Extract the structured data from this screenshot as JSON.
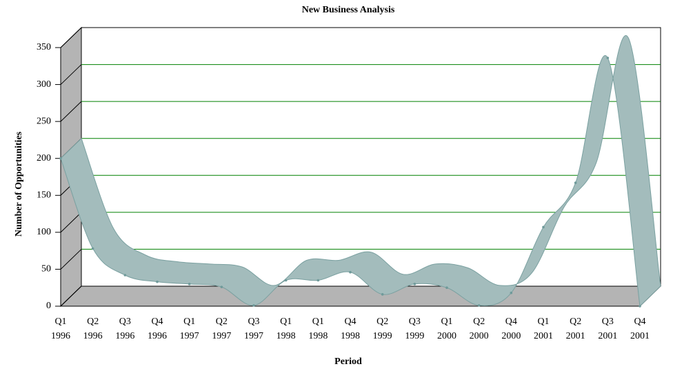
{
  "chart_data": {
    "type": "ribbon3d",
    "title": "New Business Analysis",
    "x_label": "Period",
    "y_label": "Number of Opportunities",
    "categories": [
      "Q1 1996",
      "Q2 1996",
      "Q3 1996",
      "Q4 1996",
      "Q1 1997",
      "Q2 1997",
      "Q3 1997",
      "Q1 1998",
      "Q1 1998",
      "Q4 1998",
      "Q2 1999",
      "Q3 1999",
      "Q1 2000",
      "Q2 2000",
      "Q4 2000",
      "Q1 2001",
      "Q2 2001",
      "Q3 2001",
      "Q4 2001"
    ],
    "values": [
      200,
      78,
      42,
      33,
      30,
      26,
      1,
      35,
      35,
      46,
      16,
      30,
      25,
      1,
      18,
      107,
      167,
      336,
      0
    ],
    "color": "#a3bcbc",
    "point_color": "#6f9a9a",
    "grid_color": "#008000",
    "wall_color": "#b4b4b4",
    "ylim": [
      0,
      350
    ],
    "yticks": [
      0,
      50,
      100,
      150,
      200,
      250,
      300,
      350
    ],
    "grid": true
  }
}
